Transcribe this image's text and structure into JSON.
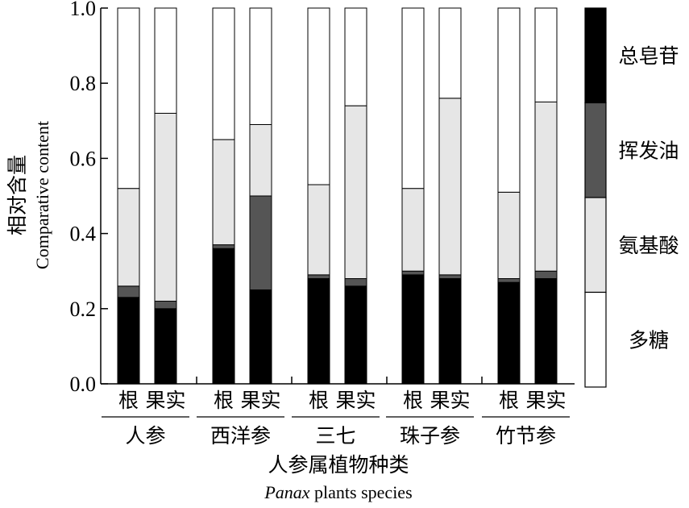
{
  "chart_data": {
    "type": "bar",
    "stacked": true,
    "normalized": true,
    "ylabel_cn": "相对含量",
    "ylabel_en": "Comparative content",
    "xlabel_cn": "人参属植物种类",
    "xlabel_en_italic": "Panax",
    "xlabel_en_rest": " plants species",
    "ylim": [
      0,
      1.0
    ],
    "yticks": [
      "0.0",
      "0.2",
      "0.4",
      "0.6",
      "0.8",
      "1.0"
    ],
    "groups": [
      {
        "name": "人参",
        "parts": [
          "根",
          "果实"
        ]
      },
      {
        "name": "西洋参",
        "parts": [
          "根",
          "果实"
        ]
      },
      {
        "name": "三七",
        "parts": [
          "根",
          "果实"
        ]
      },
      {
        "name": "珠子参",
        "parts": [
          "根",
          "果实"
        ]
      },
      {
        "name": "竹节参",
        "parts": [
          "根",
          "果实"
        ]
      }
    ],
    "series": [
      {
        "name": "总皂苷",
        "color": "#000000",
        "values": [
          0.23,
          0.2,
          0.36,
          0.25,
          0.28,
          0.26,
          0.29,
          0.28,
          0.27,
          0.28
        ]
      },
      {
        "name": "挥发油",
        "color": "#555555",
        "values": [
          0.03,
          0.02,
          0.01,
          0.25,
          0.01,
          0.02,
          0.01,
          0.01,
          0.01,
          0.02
        ]
      },
      {
        "name": "氨基酸",
        "color": "#e6e6e6",
        "values": [
          0.26,
          0.5,
          0.28,
          0.19,
          0.24,
          0.46,
          0.22,
          0.47,
          0.23,
          0.45
        ]
      },
      {
        "name": "多糖",
        "color": "#ffffff",
        "values": [
          0.48,
          0.28,
          0.35,
          0.31,
          0.47,
          0.26,
          0.48,
          0.24,
          0.49,
          0.25
        ]
      }
    ],
    "legend_position": "right"
  }
}
